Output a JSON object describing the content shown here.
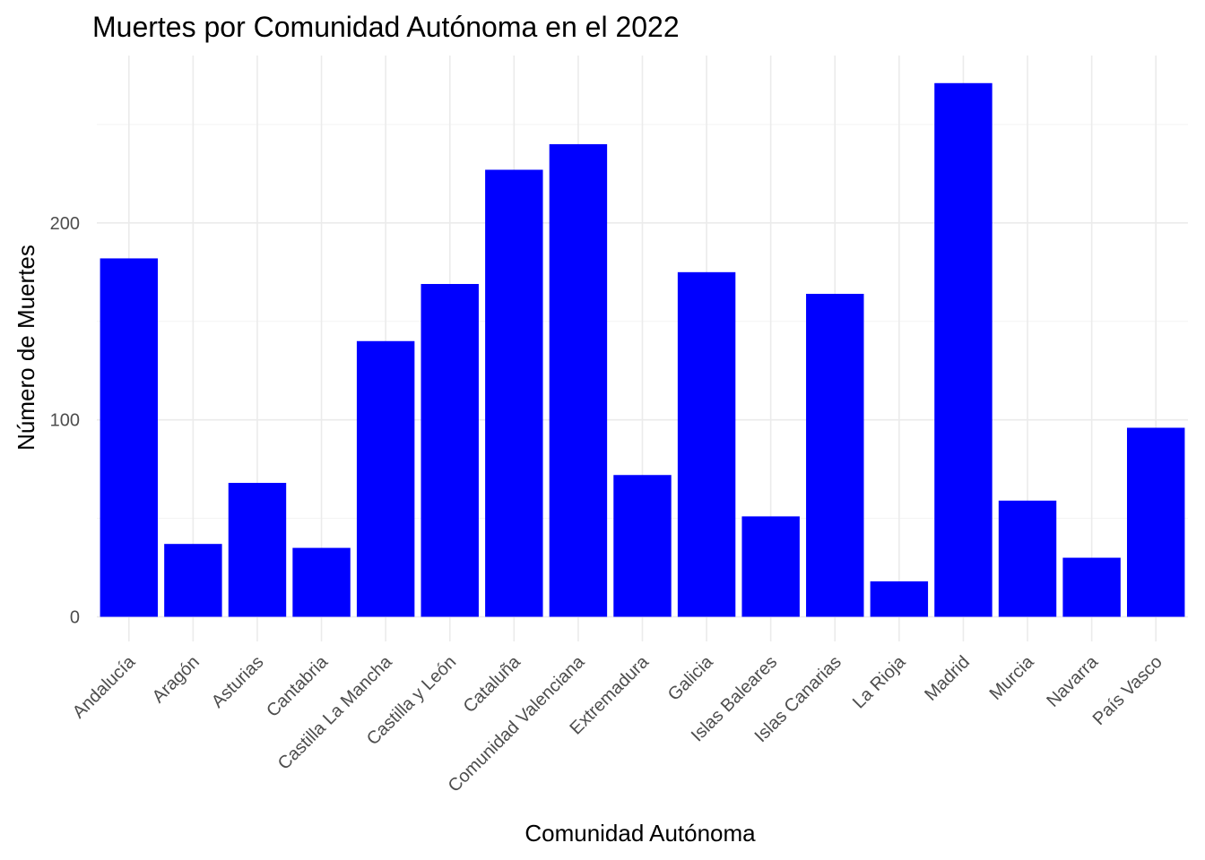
{
  "chart_data": {
    "type": "bar",
    "title": "Muertes por Comunidad Autónoma en el 2022",
    "xlabel": "Comunidad Autónoma",
    "ylabel": "Número de Muertes",
    "categories": [
      "Andalucía",
      "Aragón",
      "Asturias",
      "Cantabria",
      "Castilla La Mancha",
      "Castilla y León",
      "Cataluña",
      "Comunidad Valenciana",
      "Extremadura",
      "Galicia",
      "Islas Baleares",
      "Islas Canarias",
      "La Rioja",
      "Madrid",
      "Murcia",
      "Navarra",
      "País Vasco"
    ],
    "values": [
      182,
      37,
      68,
      35,
      140,
      169,
      227,
      240,
      72,
      175,
      51,
      164,
      18,
      271,
      59,
      30,
      96
    ],
    "yticks": [
      0,
      100,
      200
    ],
    "ylim": [
      -12.5,
      285
    ],
    "bar_color": "#0000ff",
    "grid": true,
    "legend": "none"
  }
}
